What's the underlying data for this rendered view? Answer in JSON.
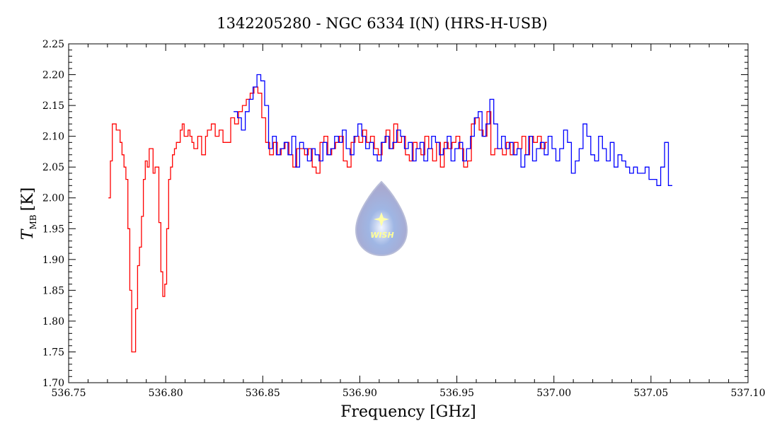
{
  "chart_data": {
    "type": "line",
    "title": "1342205280 - NGC 6334 I(N) (HRS-H-USB)",
    "xlabel": "Frequency [GHz]",
    "ylabel_main": "T",
    "ylabel_sub": "MB",
    "ylabel_unit": "[K]",
    "xlim": [
      536.75,
      537.1
    ],
    "ylim": [
      1.7,
      2.25
    ],
    "x_ticks": [
      "536.75",
      "536.80",
      "536.85",
      "536.90",
      "536.95",
      "537.00",
      "537.05",
      "537.10"
    ],
    "y_ticks": [
      "1.70",
      "1.75",
      "1.80",
      "1.85",
      "1.90",
      "1.95",
      "2.00",
      "2.05",
      "2.10",
      "2.15",
      "2.20",
      "2.25"
    ],
    "logo_text": "WISH",
    "series": [
      {
        "name": "red",
        "color": "#ff0000",
        "x_start": 536.771,
        "x_step": 0.001,
        "values": [
          2.0,
          2.06,
          2.12,
          2.12,
          2.11,
          2.11,
          2.09,
          2.07,
          2.05,
          2.03,
          1.95,
          1.85,
          1.75,
          1.75,
          1.82,
          1.89,
          1.92,
          1.97,
          2.03,
          2.06,
          2.05,
          2.08,
          2.08,
          2.04,
          2.05,
          2.05,
          1.96,
          1.88,
          1.84,
          1.86,
          1.95,
          2.03,
          2.05,
          2.07,
          2.08,
          2.09,
          2.09,
          2.11,
          2.12,
          2.1,
          2.1,
          2.11,
          2.1,
          2.09,
          2.08,
          2.08,
          2.1,
          2.1,
          2.07,
          2.07,
          2.1,
          2.11,
          2.11,
          2.12,
          2.12,
          2.1,
          2.1,
          2.11,
          2.11,
          2.09,
          2.09,
          2.09,
          2.09,
          2.13,
          2.13,
          2.12,
          2.12,
          2.14,
          2.14,
          2.15,
          2.15,
          2.16,
          2.16,
          2.17,
          2.17,
          2.18,
          2.18,
          2.17,
          2.17,
          2.13,
          2.13,
          2.09,
          2.09,
          2.07,
          2.07,
          2.09,
          2.09,
          2.07,
          2.07,
          2.08,
          2.08,
          2.09,
          2.09,
          2.07,
          2.07,
          2.05,
          2.05,
          2.08,
          2.08,
          2.08,
          2.08,
          2.07,
          2.07,
          2.08,
          2.08,
          2.05,
          2.05,
          2.04,
          2.04,
          2.09,
          2.09,
          2.1,
          2.1,
          2.07,
          2.07,
          2.08,
          2.08,
          2.09,
          2.09,
          2.1,
          2.1,
          2.06,
          2.06,
          2.05,
          2.05,
          2.09,
          2.09,
          2.1,
          2.1,
          2.09,
          2.09,
          2.11,
          2.11,
          2.09,
          2.09,
          2.1,
          2.1,
          2.08,
          2.08,
          2.07,
          2.07,
          2.09,
          2.09,
          2.11,
          2.11,
          2.08,
          2.08,
          2.12,
          2.12,
          2.09,
          2.09,
          2.1,
          2.1,
          2.07,
          2.07,
          2.06,
          2.06,
          2.09,
          2.09,
          2.08,
          2.08,
          2.07,
          2.07,
          2.1,
          2.1,
          2.08,
          2.08,
          2.06,
          2.06,
          2.09,
          2.09,
          2.05,
          2.05,
          2.09,
          2.09,
          2.08,
          2.08,
          2.09,
          2.09,
          2.1,
          2.1,
          2.08,
          2.08,
          2.05,
          2.05,
          2.06,
          2.06,
          2.12,
          2.12,
          2.13,
          2.13,
          2.11,
          2.11,
          2.1,
          2.1,
          2.14,
          2.14,
          2.07,
          2.07,
          2.08,
          2.08,
          2.08,
          2.08,
          2.07,
          2.07,
          2.09,
          2.09,
          2.07,
          2.07,
          2.09,
          2.09,
          2.08,
          2.08,
          2.1,
          2.1,
          2.07,
          2.07,
          2.1,
          2.1,
          2.09,
          2.09,
          2.1,
          2.1,
          2.08,
          2.08,
          2.09
        ]
      },
      {
        "name": "blue",
        "color": "#0000ff",
        "x_start": 536.836,
        "x_step": 0.002,
        "values": [
          2.14,
          2.13,
          2.11,
          2.14,
          2.16,
          2.18,
          2.2,
          2.19,
          2.15,
          2.08,
          2.1,
          2.07,
          2.08,
          2.09,
          2.07,
          2.1,
          2.05,
          2.09,
          2.08,
          2.06,
          2.08,
          2.07,
          2.06,
          2.09,
          2.07,
          2.08,
          2.1,
          2.09,
          2.11,
          2.08,
          2.07,
          2.1,
          2.12,
          2.1,
          2.08,
          2.09,
          2.07,
          2.06,
          2.09,
          2.1,
          2.08,
          2.09,
          2.11,
          2.1,
          2.08,
          2.09,
          2.06,
          2.08,
          2.09,
          2.06,
          2.08,
          2.1,
          2.09,
          2.07,
          2.08,
          2.1,
          2.06,
          2.08,
          2.09,
          2.06,
          2.08,
          2.1,
          2.13,
          2.14,
          2.1,
          2.12,
          2.16,
          2.12,
          2.08,
          2.1,
          2.08,
          2.09,
          2.07,
          2.08,
          2.05,
          2.07,
          2.1,
          2.06,
          2.08,
          2.09,
          2.07,
          2.1,
          2.08,
          2.06,
          2.08,
          2.11,
          2.09,
          2.04,
          2.06,
          2.08,
          2.12,
          2.1,
          2.07,
          2.06,
          2.1,
          2.08,
          2.06,
          2.09,
          2.05,
          2.07,
          2.06,
          2.05,
          2.04,
          2.05,
          2.04,
          2.04,
          2.05,
          2.03,
          2.03,
          2.02,
          2.05,
          2.09,
          2.02
        ]
      }
    ]
  }
}
